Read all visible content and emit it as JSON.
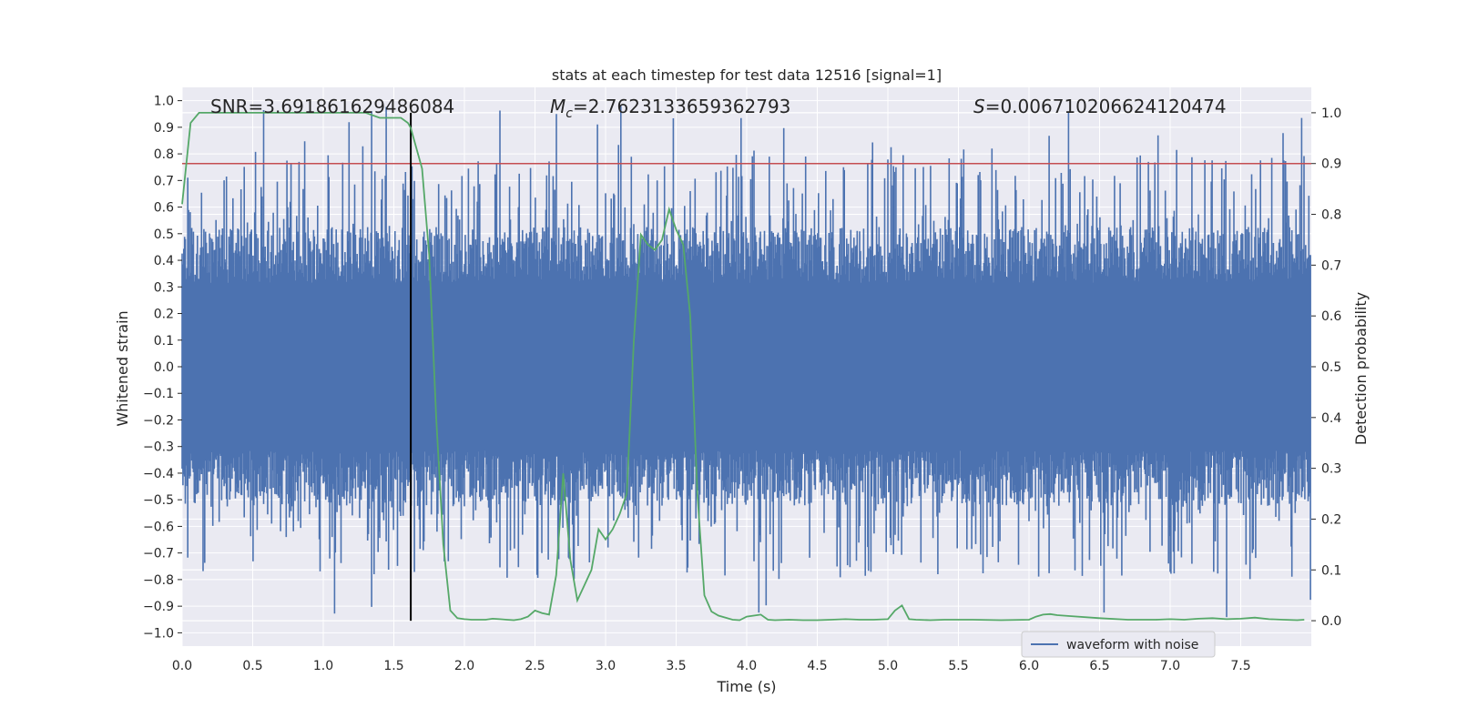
{
  "chart_data": {
    "type": "line",
    "title": "stats at each timestep for test data 12516 [signal=1]",
    "xlabel": "Time (s)",
    "ylabel_left": "Whitened strain",
    "ylabel_right": "Detection probability",
    "xlim": [
      0,
      8.0
    ],
    "ylim_left": [
      -1.05,
      1.05
    ],
    "ylim_right": [
      -0.05,
      1.05
    ],
    "xticks": [
      0.0,
      0.5,
      1.0,
      1.5,
      2.0,
      2.5,
      3.0,
      3.5,
      4.0,
      4.5,
      5.0,
      5.5,
      6.0,
      6.5,
      7.0,
      7.5
    ],
    "xtick_labels": [
      "0.0",
      "0.5",
      "1.0",
      "1.5",
      "2.0",
      "2.5",
      "3.0",
      "3.5",
      "4.0",
      "4.5",
      "5.0",
      "5.5",
      "6.0",
      "6.5",
      "7.0",
      "7.5"
    ],
    "yticks_left": [
      -1.0,
      -0.9,
      -0.8,
      -0.7,
      -0.6,
      -0.5,
      -0.4,
      -0.3,
      -0.2,
      -0.1,
      0.0,
      0.1,
      0.2,
      0.3,
      0.4,
      0.5,
      0.6,
      0.7,
      0.8,
      0.9,
      1.0
    ],
    "ytick_labels_left": [
      "−1.0",
      "−0.9",
      "−0.8",
      "−0.7",
      "−0.6",
      "−0.5",
      "−0.4",
      "−0.3",
      "−0.2",
      "−0.1",
      "0.0",
      "0.1",
      "0.2",
      "0.3",
      "0.4",
      "0.5",
      "0.6",
      "0.7",
      "0.8",
      "0.9",
      "1.0"
    ],
    "yticks_right": [
      0.0,
      0.1,
      0.2,
      0.3,
      0.4,
      0.5,
      0.6,
      0.7,
      0.8,
      0.9,
      1.0
    ],
    "ytick_labels_right": [
      "0.0",
      "0.1",
      "0.2",
      "0.3",
      "0.4",
      "0.5",
      "0.6",
      "0.7",
      "0.8",
      "0.9",
      "1.0"
    ],
    "grid": true,
    "legend": {
      "location": "lower-right",
      "entries": [
        "waveform with noise"
      ]
    },
    "annotations": {
      "snr": "SNR=3.691861629486084",
      "mc_symbol": "M",
      "mc_sub": "c",
      "mc_value": "=2.7623133659362793",
      "s_symbol": "S",
      "s_value": "=0.006710206624120474"
    },
    "threshold_line": {
      "axis": "right",
      "y": 0.9,
      "color": "#c44e52"
    },
    "marker_line": {
      "x": 1.62,
      "color": "#000000"
    },
    "series": [
      {
        "name": "waveform with noise",
        "axis": "left",
        "color": "#4c72b0",
        "kind": "noise-envelope",
        "duration": 8.0,
        "envelope_core": 0.42,
        "envelope_peak": 0.98
      },
      {
        "name": "Detection probability",
        "axis": "right",
        "color": "#55a868",
        "x": [
          0.0,
          0.06,
          0.12,
          0.2,
          0.4,
          0.6,
          0.8,
          1.0,
          1.2,
          1.3,
          1.4,
          1.45,
          1.5,
          1.55,
          1.6,
          1.62,
          1.66,
          1.7,
          1.75,
          1.8,
          1.85,
          1.9,
          1.95,
          2.0,
          2.05,
          2.1,
          2.15,
          2.2,
          2.25,
          2.3,
          2.35,
          2.4,
          2.45,
          2.5,
          2.55,
          2.6,
          2.65,
          2.7,
          2.75,
          2.8,
          2.85,
          2.9,
          2.95,
          3.0,
          3.05,
          3.1,
          3.15,
          3.2,
          3.25,
          3.3,
          3.35,
          3.4,
          3.45,
          3.5,
          3.55,
          3.6,
          3.65,
          3.7,
          3.75,
          3.8,
          3.85,
          3.9,
          3.95,
          4.0,
          4.05,
          4.1,
          4.15,
          4.2,
          4.3,
          4.4,
          4.5,
          4.6,
          4.7,
          4.8,
          4.9,
          5.0,
          5.05,
          5.1,
          5.15,
          5.2,
          5.3,
          5.4,
          5.6,
          5.8,
          6.0,
          6.05,
          6.1,
          6.15,
          6.2,
          6.3,
          6.5,
          6.7,
          6.9,
          7.0,
          7.1,
          7.2,
          7.3,
          7.4,
          7.5,
          7.6,
          7.7,
          7.8,
          7.9,
          7.95
        ],
        "y": [
          0.82,
          0.98,
          1.0,
          1.0,
          1.0,
          1.0,
          1.0,
          1.0,
          1.0,
          1.0,
          0.99,
          0.99,
          0.99,
          0.99,
          0.98,
          0.97,
          0.93,
          0.89,
          0.72,
          0.4,
          0.15,
          0.02,
          0.005,
          0.003,
          0.002,
          0.002,
          0.002,
          0.004,
          0.003,
          0.002,
          0.001,
          0.003,
          0.008,
          0.02,
          0.015,
          0.012,
          0.09,
          0.29,
          0.12,
          0.04,
          0.07,
          0.1,
          0.18,
          0.16,
          0.18,
          0.21,
          0.25,
          0.55,
          0.76,
          0.74,
          0.73,
          0.75,
          0.81,
          0.77,
          0.74,
          0.6,
          0.25,
          0.05,
          0.018,
          0.01,
          0.006,
          0.002,
          0.001,
          0.008,
          0.01,
          0.012,
          0.002,
          0.001,
          0.002,
          0.001,
          0.001,
          0.002,
          0.003,
          0.002,
          0.002,
          0.003,
          0.02,
          0.03,
          0.003,
          0.002,
          0.001,
          0.002,
          0.002,
          0.001,
          0.002,
          0.008,
          0.012,
          0.013,
          0.011,
          0.009,
          0.005,
          0.002,
          0.002,
          0.003,
          0.002,
          0.004,
          0.005,
          0.003,
          0.004,
          0.006,
          0.003,
          0.002,
          0.001,
          0.002
        ]
      }
    ]
  }
}
